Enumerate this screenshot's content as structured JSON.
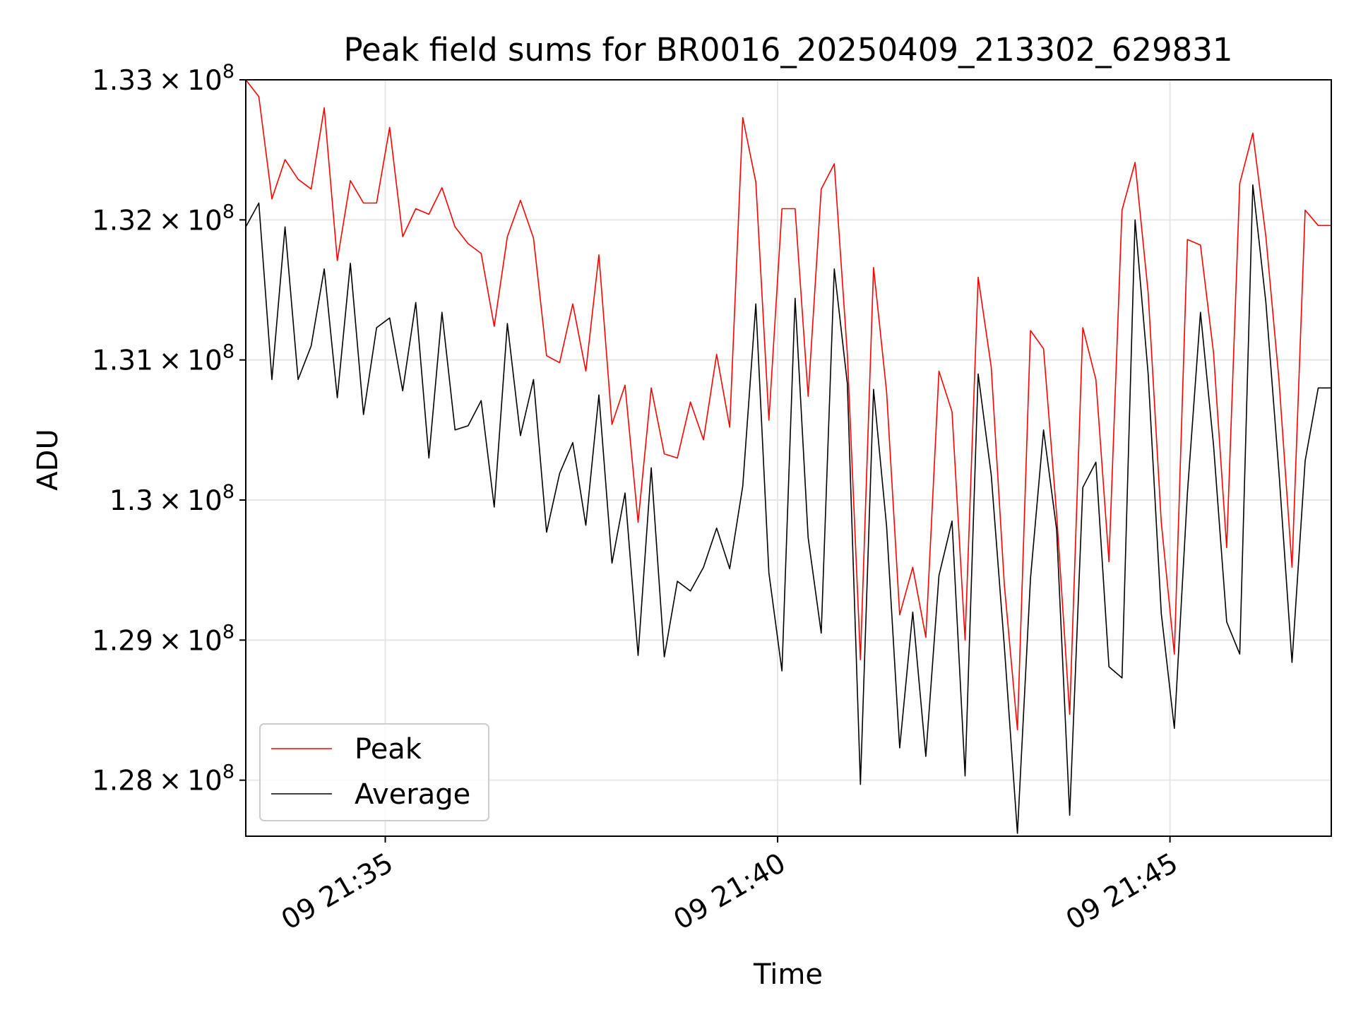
{
  "chart_data": {
    "type": "line",
    "title": "Peak field sums for BR0016_20250409_213302_629831",
    "xlabel": "Time",
    "ylabel": "ADU",
    "x_unit": "seconds after 09 21:33",
    "xlim": [
      -11,
      487
    ],
    "ylim": [
      127600000,
      133000000
    ],
    "y_tick_values": [
      128000000,
      129000000,
      130000000,
      131000000,
      132000000,
      133000000
    ],
    "y_tick_mantissas": [
      "1.28",
      "1.29",
      "1.3",
      "1.31",
      "1.32",
      "1.33"
    ],
    "y_tick_exponent": "8",
    "x_tick_values": [
      53,
      233,
      413
    ],
    "x_tick_labels": [
      "09 21:35",
      "09 21:40",
      "09 21:45"
    ],
    "grid": true,
    "legend_position": "lower-left",
    "x": [
      -11,
      -5,
      1,
      7,
      13,
      19,
      25,
      31,
      37,
      43,
      49,
      55,
      61,
      67,
      73,
      79,
      85,
      91,
      97,
      103,
      109,
      115,
      121,
      127,
      133,
      139,
      145,
      151,
      157,
      163,
      169,
      175,
      181,
      187,
      193,
      199,
      205,
      211,
      217,
      223,
      229,
      235,
      241,
      247,
      253,
      259,
      265,
      271,
      277,
      283,
      289,
      295,
      301,
      307,
      313,
      319,
      325,
      331,
      337,
      343,
      349,
      355,
      361,
      367,
      373,
      379,
      385,
      391,
      397,
      403,
      409,
      415,
      421,
      427,
      433,
      439,
      445,
      451,
      457,
      463,
      469,
      475,
      481,
      487
    ],
    "series": [
      {
        "name": "Peak",
        "color": "#ff0000",
        "values": [
          133000000,
          132880000,
          132150000,
          132430000,
          132290000,
          132220000,
          132800000,
          131710000,
          132280000,
          132120000,
          132120000,
          132660000,
          131880000,
          132080000,
          132040000,
          132230000,
          131950000,
          131830000,
          131760000,
          131240000,
          131880000,
          132140000,
          131870000,
          131030000,
          130980000,
          131400000,
          130920000,
          131750000,
          130540000,
          130820000,
          129840000,
          130800000,
          130330000,
          130300000,
          130700000,
          130430000,
          131040000,
          130520000,
          132730000,
          132270000,
          130570000,
          132080000,
          132080000,
          130740000,
          132220000,
          132400000,
          131040000,
          128860000,
          131660000,
          130770000,
          129180000,
          129520000,
          129020000,
          130920000,
          130630000,
          129000000,
          131590000,
          130950000,
          129400000,
          128360000,
          131210000,
          131080000,
          129900000,
          128470000,
          131230000,
          130860000,
          129560000,
          132070000,
          132410000,
          131480000,
          129840000,
          128900000,
          131860000,
          131820000,
          131050000,
          129660000,
          132260000,
          132620000,
          131880000,
          130860000,
          129520000,
          132070000,
          131960000,
          131960000
        ]
      },
      {
        "name": "Average",
        "color": "#000000",
        "values": [
          131950000,
          132120000,
          130860000,
          131950000,
          130860000,
          131100000,
          131650000,
          130730000,
          131690000,
          130610000,
          131230000,
          131300000,
          130780000,
          131410000,
          130300000,
          131340000,
          130500000,
          130530000,
          130710000,
          129950000,
          131260000,
          130460000,
          130860000,
          129770000,
          130190000,
          130410000,
          129820000,
          130750000,
          129550000,
          130050000,
          128890000,
          130230000,
          128880000,
          129420000,
          129350000,
          129520000,
          129800000,
          129510000,
          130100000,
          131400000,
          129480000,
          128780000,
          131440000,
          129730000,
          129050000,
          131650000,
          130830000,
          127970000,
          130790000,
          129810000,
          128230000,
          129200000,
          128170000,
          129460000,
          129850000,
          128030000,
          130900000,
          130180000,
          128960000,
          127620000,
          129440000,
          130500000,
          129790000,
          127750000,
          130090000,
          130270000,
          128810000,
          128730000,
          132000000,
          130900000,
          129190000,
          128370000,
          130050000,
          131340000,
          130390000,
          129130000,
          128900000,
          132250000,
          131410000,
          130200000,
          128840000,
          130280000,
          130800000,
          130800000
        ]
      }
    ]
  }
}
